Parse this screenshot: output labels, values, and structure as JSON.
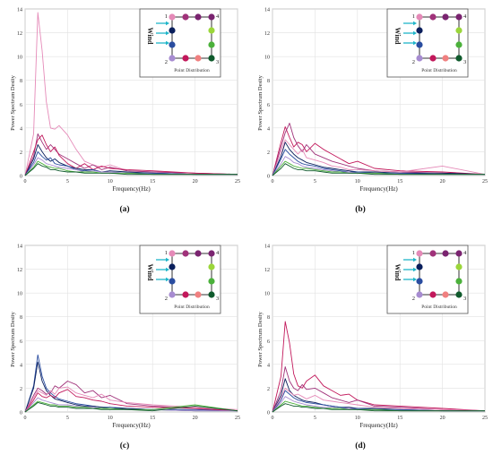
{
  "colors": {
    "inset_frame": "#333333",
    "wind_arrow": "#1fb5c9",
    "point_palette": {
      "p1": "#e58ab8",
      "p_top_mid": "#a0327a",
      "p4": "#7a2470",
      "p_left_1": "#0a1f5c",
      "p_left_2": "#2a4da0",
      "p2": "#a78cd1",
      "p_right_1": "#9bd63a",
      "p_right_2": "#4bb13b",
      "p3": "#0f5a2c",
      "p_bottom_1": "#c2185b",
      "p_bottom_2": "#f08080"
    }
  },
  "chart_data": [
    {
      "type": "line",
      "panel_label": "(a)",
      "xlabel": "Frequency(Hz)",
      "ylabel": "Power Spectrum Desity",
      "xlim": [
        0,
        25
      ],
      "ylim": [
        0,
        14
      ],
      "xticks": [
        0,
        5,
        10,
        15,
        20,
        25
      ],
      "yticks": [
        0,
        2,
        4,
        6,
        8,
        10,
        12,
        14
      ],
      "grid": true,
      "x": [
        0,
        1,
        1.5,
        2,
        2.5,
        3,
        3.5,
        4,
        5,
        6,
        7,
        8,
        9,
        10,
        12,
        15,
        20,
        25
      ],
      "series": [
        {
          "color": "#e58ab8",
          "values": [
            0,
            3.5,
            13.7,
            10.5,
            6.2,
            4.0,
            3.9,
            4.2,
            3.4,
            2.2,
            1.2,
            0.9,
            0.7,
            0.9,
            0.4,
            0.3,
            0.2,
            0.1
          ]
        },
        {
          "color": "#a0327a",
          "values": [
            0,
            1.6,
            3.5,
            2.8,
            2.2,
            2.6,
            2.2,
            1.8,
            1.4,
            1.0,
            0.6,
            0.9,
            0.5,
            0.7,
            0.4,
            0.3,
            0.2,
            0.1
          ]
        },
        {
          "color": "#c2185b",
          "values": [
            0,
            2.0,
            3.0,
            3.4,
            2.6,
            2.0,
            2.4,
            1.7,
            1.0,
            0.6,
            1.0,
            0.5,
            0.8,
            0.6,
            0.5,
            0.4,
            0.2,
            0.1
          ]
        },
        {
          "color": "#0a1f5c",
          "values": [
            0,
            1.4,
            2.6,
            2.0,
            1.5,
            1.2,
            1.4,
            1.1,
            0.8,
            0.6,
            0.5,
            0.5,
            0.3,
            0.4,
            0.3,
            0.2,
            0.1,
            0.1
          ]
        },
        {
          "color": "#2a4da0",
          "values": [
            0,
            1.1,
            2.0,
            1.6,
            1.3,
            1.5,
            1.0,
            0.9,
            0.8,
            0.5,
            0.4,
            0.5,
            0.3,
            0.3,
            0.2,
            0.2,
            0.1,
            0.1
          ]
        },
        {
          "color": "#a78cd1",
          "values": [
            0,
            0.9,
            1.5,
            1.3,
            1.0,
            0.9,
            0.8,
            0.7,
            0.6,
            0.5,
            0.3,
            0.4,
            0.3,
            0.3,
            0.2,
            0.1,
            0.1,
            0.1
          ]
        },
        {
          "color": "#4bb13b",
          "values": [
            0,
            0.7,
            1.2,
            1.0,
            0.8,
            0.7,
            0.6,
            0.6,
            0.4,
            0.3,
            0.3,
            0.3,
            0.2,
            0.2,
            0.2,
            0.1,
            0.1,
            0.1
          ]
        },
        {
          "color": "#0f5a2c",
          "values": [
            0,
            0.6,
            1.0,
            0.8,
            0.7,
            0.5,
            0.5,
            0.4,
            0.3,
            0.3,
            0.2,
            0.2,
            0.2,
            0.2,
            0.1,
            0.1,
            0.1,
            0.1
          ]
        }
      ],
      "inset": {
        "wind_label": "Wind",
        "caption": "Point Distribution",
        "corners": [
          "1",
          "4",
          "2",
          "3"
        ]
      }
    },
    {
      "type": "line",
      "panel_label": "(b)",
      "xlabel": "Frequency(Hz)",
      "ylabel": "Power Spectrum Desity",
      "xlim": [
        0,
        25
      ],
      "ylim": [
        0,
        14
      ],
      "xticks": [
        0,
        5,
        10,
        15,
        20,
        25
      ],
      "yticks": [
        0,
        2,
        4,
        6,
        8,
        10,
        12,
        14
      ],
      "grid": true,
      "x": [
        0,
        1,
        1.5,
        2,
        2.5,
        3,
        3.5,
        4,
        5,
        6,
        7,
        8,
        9,
        10,
        12,
        15,
        20,
        25
      ],
      "series": [
        {
          "color": "#c2185b",
          "values": [
            0,
            2.8,
            4.1,
            3.2,
            2.4,
            2.8,
            2.6,
            2.0,
            2.7,
            2.2,
            1.8,
            1.4,
            1.0,
            1.2,
            0.6,
            0.4,
            0.3,
            0.1
          ]
        },
        {
          "color": "#a0327a",
          "values": [
            0,
            2.4,
            3.6,
            4.4,
            3.2,
            2.5,
            2.0,
            2.6,
            1.8,
            1.5,
            1.2,
            1.0,
            0.8,
            0.6,
            0.4,
            0.3,
            0.2,
            0.1
          ]
        },
        {
          "color": "#e58ab8",
          "values": [
            0,
            2.0,
            3.0,
            2.6,
            2.2,
            1.8,
            2.2,
            1.5,
            1.3,
            1.1,
            0.8,
            0.7,
            0.5,
            0.5,
            0.4,
            0.3,
            0.8,
            0.1
          ]
        },
        {
          "color": "#0a1f5c",
          "values": [
            0,
            1.6,
            2.8,
            2.2,
            1.8,
            1.5,
            1.3,
            1.1,
            0.9,
            0.7,
            0.6,
            0.5,
            0.4,
            0.3,
            0.3,
            0.2,
            0.2,
            0.1
          ]
        },
        {
          "color": "#2a4da0",
          "values": [
            0,
            1.4,
            2.2,
            1.8,
            1.5,
            1.2,
            1.0,
            0.9,
            0.8,
            0.6,
            0.5,
            0.4,
            0.3,
            0.3,
            0.2,
            0.2,
            0.1,
            0.1
          ]
        },
        {
          "color": "#a78cd1",
          "values": [
            0,
            1.0,
            1.6,
            1.4,
            1.1,
            1.0,
            0.8,
            0.7,
            0.6,
            0.5,
            0.4,
            0.3,
            0.3,
            0.2,
            0.2,
            0.1,
            0.1,
            0.1
          ]
        },
        {
          "color": "#4bb13b",
          "values": [
            0,
            0.8,
            1.2,
            1.0,
            0.8,
            0.7,
            0.6,
            0.6,
            0.5,
            0.4,
            0.3,
            0.3,
            0.2,
            0.2,
            0.2,
            0.1,
            0.1,
            0.1
          ]
        },
        {
          "color": "#0f5a2c",
          "values": [
            0,
            0.6,
            1.0,
            0.8,
            0.6,
            0.5,
            0.5,
            0.4,
            0.4,
            0.3,
            0.2,
            0.2,
            0.2,
            0.2,
            0.1,
            0.1,
            0.1,
            0.1
          ]
        }
      ],
      "inset": {
        "wind_label": "Wind",
        "caption": "Point Distribution",
        "corners": [
          "1",
          "4",
          "2",
          "3"
        ]
      }
    },
    {
      "type": "line",
      "panel_label": "(c)",
      "xlabel": "Frequency(Hz)",
      "ylabel": "Power Spectrum Desity",
      "xlim": [
        0,
        25
      ],
      "ylim": [
        0,
        14
      ],
      "xticks": [
        0,
        5,
        10,
        15,
        20,
        25
      ],
      "yticks": [
        0,
        2,
        4,
        6,
        8,
        10,
        12,
        14
      ],
      "grid": true,
      "x": [
        0,
        1,
        1.5,
        2,
        2.5,
        3,
        3.5,
        4,
        5,
        6,
        7,
        8,
        9,
        10,
        12,
        15,
        20,
        25
      ],
      "series": [
        {
          "color": "#2a4da0",
          "values": [
            0,
            2.2,
            4.8,
            3.0,
            2.0,
            1.6,
            1.3,
            1.1,
            0.9,
            0.7,
            0.6,
            0.5,
            0.4,
            0.4,
            0.3,
            0.2,
            0.2,
            0.1
          ]
        },
        {
          "color": "#0a1f5c",
          "values": [
            0,
            2.0,
            4.2,
            2.6,
            1.8,
            1.4,
            1.1,
            1.0,
            0.8,
            0.6,
            0.5,
            0.5,
            0.4,
            0.3,
            0.3,
            0.2,
            0.1,
            0.1
          ]
        },
        {
          "color": "#a0327a",
          "values": [
            0,
            1.4,
            2.0,
            1.8,
            1.5,
            1.6,
            2.2,
            2.0,
            2.6,
            2.3,
            1.6,
            1.8,
            1.2,
            1.4,
            0.7,
            0.5,
            0.3,
            0.1
          ]
        },
        {
          "color": "#e58ab8",
          "values": [
            0,
            1.2,
            1.8,
            1.6,
            1.4,
            1.8,
            1.5,
            2.0,
            2.1,
            1.6,
            1.4,
            1.2,
            1.5,
            1.0,
            0.8,
            0.6,
            0.4,
            0.2
          ]
        },
        {
          "color": "#c2185b",
          "values": [
            0,
            1.0,
            1.6,
            1.3,
            1.2,
            1.4,
            1.2,
            1.6,
            1.9,
            1.3,
            1.2,
            1.0,
            0.9,
            0.7,
            0.5,
            0.4,
            0.3,
            0.1
          ]
        },
        {
          "color": "#a78cd1",
          "values": [
            0,
            0.8,
            1.2,
            1.0,
            0.9,
            0.8,
            0.7,
            0.6,
            0.6,
            0.5,
            0.4,
            0.4,
            0.3,
            0.3,
            0.2,
            0.2,
            0.1,
            0.1
          ]
        },
        {
          "color": "#4bb13b",
          "values": [
            0,
            0.6,
            0.9,
            0.8,
            0.7,
            0.6,
            0.6,
            0.5,
            0.5,
            0.4,
            0.4,
            0.3,
            0.3,
            0.3,
            0.2,
            0.2,
            0.6,
            0.1
          ]
        },
        {
          "color": "#0f5a2c",
          "values": [
            0,
            0.5,
            0.8,
            0.7,
            0.6,
            0.5,
            0.5,
            0.4,
            0.4,
            0.3,
            0.3,
            0.3,
            0.2,
            0.2,
            0.2,
            0.1,
            0.5,
            0.1
          ]
        }
      ],
      "inset": {
        "wind_label": "Wind",
        "caption": "Point Distribution",
        "corners": [
          "1",
          "4",
          "2",
          "3"
        ]
      }
    },
    {
      "type": "line",
      "panel_label": "(d)",
      "xlabel": "Frequency(Hz)",
      "ylabel": "Power Spectrum Desity",
      "xlim": [
        0,
        25
      ],
      "ylim": [
        0,
        14
      ],
      "xticks": [
        0,
        5,
        10,
        15,
        20,
        25
      ],
      "yticks": [
        0,
        2,
        4,
        6,
        8,
        10,
        12,
        14
      ],
      "grid": true,
      "x": [
        0,
        1,
        1.5,
        2,
        2.5,
        3,
        3.5,
        4,
        5,
        6,
        7,
        8,
        9,
        10,
        12,
        15,
        20,
        25
      ],
      "series": [
        {
          "color": "#c2185b",
          "values": [
            0,
            3.0,
            7.6,
            5.8,
            3.2,
            2.2,
            2.0,
            2.6,
            3.1,
            2.2,
            1.8,
            1.4,
            1.5,
            1.0,
            0.6,
            0.5,
            0.3,
            0.1
          ]
        },
        {
          "color": "#a0327a",
          "values": [
            0,
            1.8,
            3.8,
            2.6,
            2.0,
            1.8,
            2.3,
            1.9,
            2.0,
            1.6,
            1.2,
            1.0,
            0.8,
            1.0,
            0.5,
            0.4,
            0.2,
            0.1
          ]
        },
        {
          "color": "#0a1f5c",
          "values": [
            0,
            1.4,
            2.8,
            1.8,
            1.4,
            1.2,
            1.0,
            0.9,
            0.8,
            0.6,
            0.5,
            0.4,
            0.4,
            0.3,
            0.3,
            0.2,
            0.1,
            0.1
          ]
        },
        {
          "color": "#e58ab8",
          "values": [
            0,
            1.2,
            2.0,
            1.7,
            1.4,
            1.5,
            1.3,
            1.1,
            1.4,
            1.0,
            0.9,
            0.8,
            0.7,
            0.6,
            0.4,
            0.3,
            0.2,
            0.1
          ]
        },
        {
          "color": "#2a4da0",
          "values": [
            0,
            1.0,
            1.8,
            1.5,
            1.2,
            1.0,
            0.9,
            0.8,
            0.7,
            0.6,
            0.5,
            0.4,
            0.3,
            0.3,
            0.2,
            0.2,
            0.1,
            0.1
          ]
        },
        {
          "color": "#a78cd1",
          "values": [
            0,
            0.8,
            1.3,
            1.1,
            0.9,
            0.8,
            0.7,
            0.6,
            0.5,
            0.4,
            0.4,
            0.3,
            0.3,
            0.2,
            0.2,
            0.1,
            0.1,
            0.1
          ]
        },
        {
          "color": "#4bb13b",
          "values": [
            0,
            0.6,
            0.9,
            0.8,
            0.7,
            0.6,
            0.5,
            0.5,
            0.4,
            0.3,
            0.3,
            0.3,
            0.2,
            0.2,
            0.2,
            0.1,
            0.1,
            0.1
          ]
        },
        {
          "color": "#0f5a2c",
          "values": [
            0,
            0.5,
            0.7,
            0.6,
            0.5,
            0.5,
            0.4,
            0.4,
            0.3,
            0.3,
            0.2,
            0.2,
            0.2,
            0.2,
            0.1,
            0.1,
            0.1,
            0.1
          ]
        }
      ],
      "inset": {
        "wind_label": "Wind",
        "caption": "Point Distribution",
        "corners": [
          "1",
          "4",
          "2",
          "3"
        ]
      }
    }
  ]
}
